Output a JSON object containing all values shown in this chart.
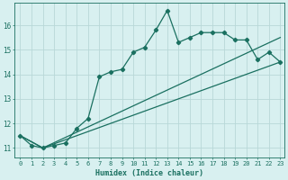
{
  "xlabel": "Humidex (Indice chaleur)",
  "bg_color": "#d8f0f0",
  "line_color": "#1a7060",
  "grid_color": "#b8d8d8",
  "xlim": [
    -0.5,
    23.4
  ],
  "ylim": [
    10.6,
    16.9
  ],
  "yticks": [
    11,
    12,
    13,
    14,
    15,
    16
  ],
  "xticks": [
    0,
    1,
    2,
    3,
    4,
    5,
    6,
    7,
    8,
    9,
    10,
    11,
    12,
    13,
    14,
    15,
    16,
    17,
    18,
    19,
    20,
    21,
    22,
    23
  ],
  "line1_x": [
    0,
    1,
    2,
    3,
    4,
    5,
    6,
    7,
    8,
    9,
    10,
    11,
    12,
    13,
    14,
    15,
    16,
    17,
    18,
    19,
    20,
    21,
    22,
    23
  ],
  "line1_y": [
    11.5,
    11.1,
    11.0,
    11.1,
    11.2,
    11.8,
    12.2,
    13.9,
    14.1,
    14.2,
    14.9,
    15.1,
    15.8,
    16.6,
    15.3,
    15.5,
    15.7,
    15.7,
    15.7,
    15.4,
    15.4,
    14.6,
    14.9,
    14.5
  ],
  "line2_x": [
    0,
    2,
    23
  ],
  "line2_y": [
    11.5,
    11.0,
    15.5
  ],
  "line3_x": [
    0,
    2,
    23
  ],
  "line3_y": [
    11.5,
    11.0,
    14.5
  ]
}
